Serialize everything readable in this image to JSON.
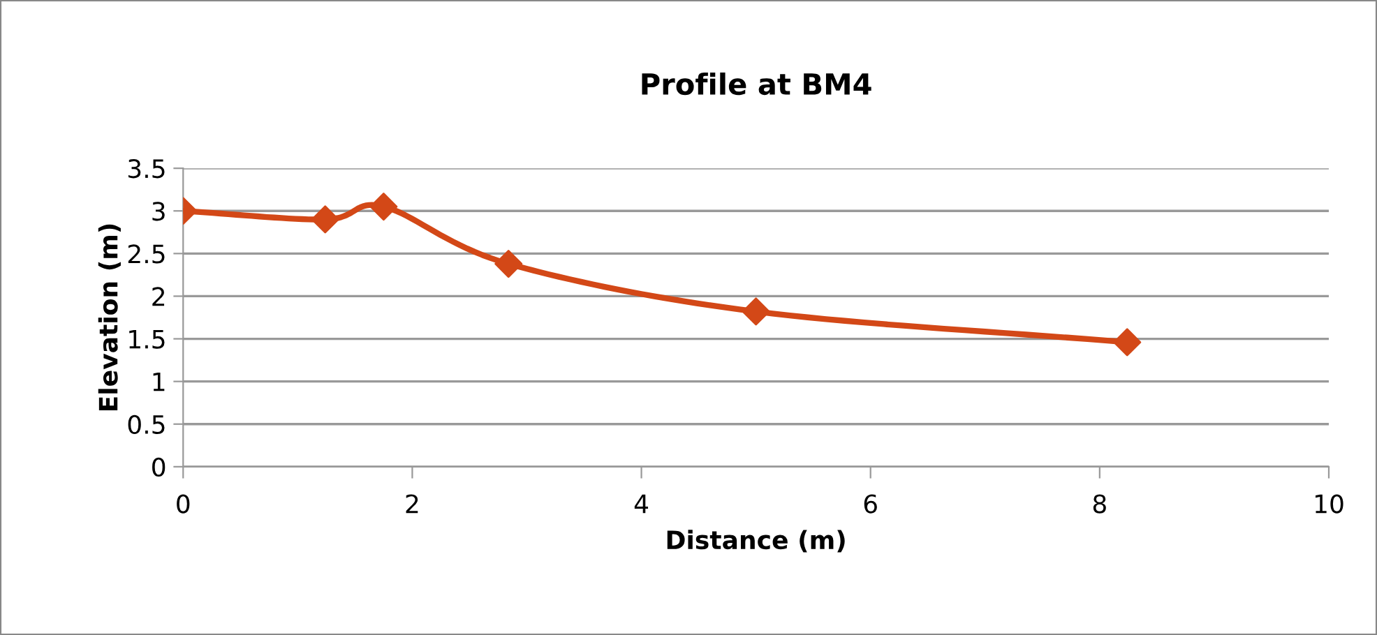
{
  "chart_data": {
    "type": "line",
    "title": "Profile at BM4",
    "xlabel": "Distance (m)",
    "ylabel": "Elevation (m)",
    "x": [
      0,
      1.24,
      1.75,
      2.84,
      5.0,
      8.24
    ],
    "series": [
      {
        "color": "#d34817",
        "values": [
          3.0,
          2.9,
          3.05,
          2.38,
          1.82,
          1.46
        ]
      }
    ],
    "xlim": [
      0,
      10
    ],
    "xticks": [
      0,
      2,
      4,
      6,
      8,
      10
    ],
    "ylim": [
      0,
      3.5
    ],
    "yticks": [
      0,
      0.5,
      1,
      1.5,
      2,
      2.5,
      3,
      3.5
    ],
    "grid": "y",
    "legend": false,
    "marker": "diamond",
    "line_style": "solid"
  }
}
